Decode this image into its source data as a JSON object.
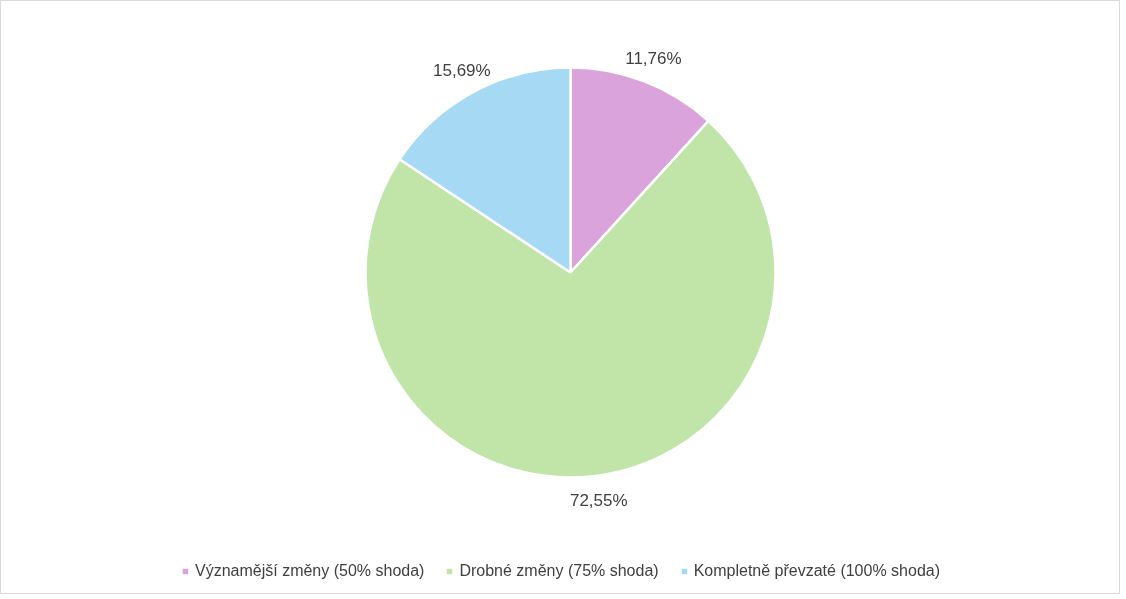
{
  "chart_data": {
    "type": "pie",
    "categories": [
      "Významější změny (50% shoda)",
      "Drobné změny (75% shoda)",
      "Kompletně převzaté (100% shoda)"
    ],
    "values": [
      11.76,
      72.55,
      15.69
    ],
    "colors": [
      "#dba3db",
      "#c1e4a9",
      "#a6d9f3"
    ],
    "value_labels": [
      "11,76%",
      "72,55%",
      "15,69%"
    ],
    "legend": "bottom"
  }
}
